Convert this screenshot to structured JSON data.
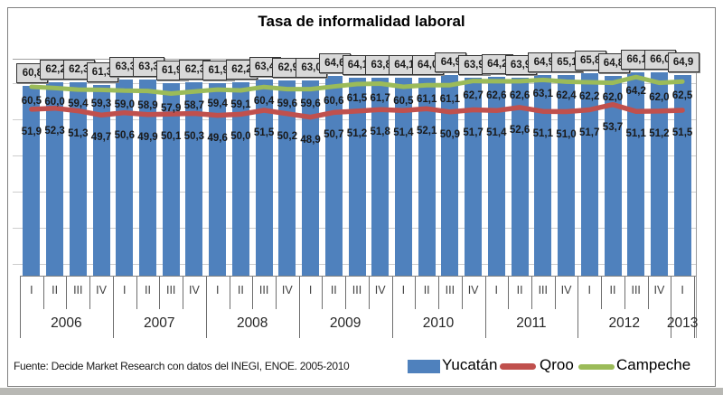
{
  "title": "Tasa de informalidad laboral",
  "source": "Fuente: Decide Market Research con datos del  INEGI, ENOE. 2005-2010",
  "legend": [
    {
      "label": "Yucatán",
      "color": "#4F81BD",
      "swatch": "box"
    },
    {
      "label": "Qroo",
      "color": "#C0504D",
      "swatch": "line"
    },
    {
      "label": "Campeche",
      "color": "#9BBB59",
      "swatch": "line"
    }
  ],
  "chart_data": {
    "type": "bar+line",
    "title": "Tasa de informalidad laboral",
    "decimal_separator": ",",
    "quarters": [
      "I",
      "II",
      "III",
      "IV",
      "I",
      "II",
      "III",
      "IV",
      "I",
      "II",
      "III",
      "IV",
      "I",
      "II",
      "III",
      "IV",
      "I",
      "II",
      "III",
      "IV",
      "I",
      "II",
      "III",
      "IV",
      "I",
      "II",
      "III",
      "IV",
      "I"
    ],
    "year_groups": [
      {
        "year": "2006",
        "count": 4
      },
      {
        "year": "2007",
        "count": 4
      },
      {
        "year": "2008",
        "count": 4
      },
      {
        "year": "2009",
        "count": 4
      },
      {
        "year": "2010",
        "count": 4
      },
      {
        "year": "2011",
        "count": 4
      },
      {
        "year": "2012",
        "count": 4
      },
      {
        "year": "2013",
        "count": 1
      }
    ],
    "series": [
      {
        "name": "Yucatán",
        "type": "bar",
        "color": "#4F81BD",
        "label_style": "boxed",
        "values": [
          60.8,
          62.2,
          62.3,
          61.3,
          63.3,
          63.3,
          61.9,
          62.3,
          61.9,
          62.2,
          63.4,
          62.9,
          63.0,
          64.6,
          64.1,
          63.8,
          64.1,
          64.0,
          64.9,
          63.9,
          64.2,
          63.9,
          64.9,
          65.1,
          65.8,
          64.8,
          66.1,
          66.0,
          64.9
        ]
      },
      {
        "name": "Qroo",
        "type": "line",
        "color": "#C0504D",
        "label_style": "plain",
        "values": [
          51.9,
          52.3,
          51.3,
          49.7,
          50.6,
          49.9,
          50.1,
          50.3,
          49.6,
          50.0,
          51.5,
          50.2,
          48.9,
          50.7,
          51.2,
          51.8,
          51.4,
          52.1,
          50.9,
          51.7,
          51.4,
          52.6,
          51.1,
          51.0,
          51.7,
          53.7,
          51.1,
          51.2,
          51.5
        ]
      },
      {
        "name": "Campeche",
        "type": "line",
        "color": "#9BBB59",
        "label_style": "plain",
        "values": [
          60.5,
          60.0,
          59.4,
          59.3,
          59.0,
          58.9,
          57.9,
          58.7,
          59.4,
          59.1,
          60.4,
          59.6,
          59.6,
          60.6,
          61.5,
          61.7,
          60.5,
          61.1,
          61.1,
          62.7,
          62.6,
          62.6,
          63.1,
          62.4,
          62.2,
          62.0,
          64.2,
          62.0,
          62.5
        ]
      }
    ]
  }
}
